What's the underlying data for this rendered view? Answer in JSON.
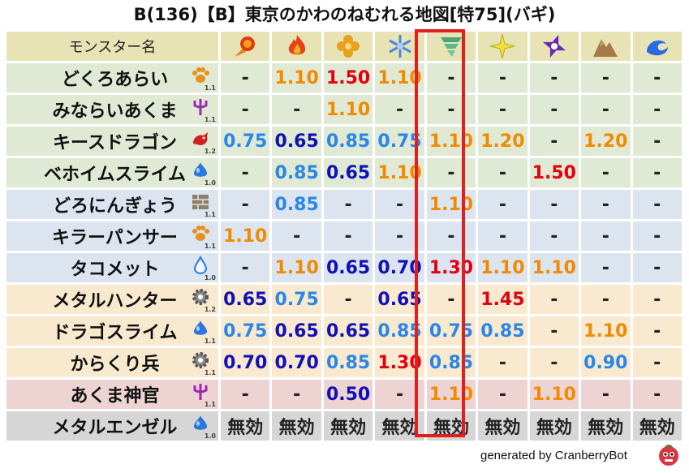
{
  "title": "B(136)【B】東京のかわのねむれる地図[特75](バギ)",
  "header": {
    "name_col": "モンスター名",
    "attributes": [
      {
        "icon": "fire-icon"
      },
      {
        "icon": "flame-icon"
      },
      {
        "icon": "clover-icon"
      },
      {
        "icon": "snowflake-icon"
      },
      {
        "icon": "tornado-icon"
      },
      {
        "icon": "light-icon"
      },
      {
        "icon": "shuriken-icon"
      },
      {
        "icon": "rock-icon"
      },
      {
        "icon": "wave-icon"
      }
    ]
  },
  "highlight_column_index": 4,
  "colors": {
    "orange": "#f28a00",
    "red": "#e3000f",
    "navy": "#1010b8",
    "light_blue": "#2a86e8",
    "highlight_border": "#e02020"
  },
  "rows": [
    {
      "name": "どくろあらい",
      "icon": "paw-icon",
      "level": "1.1",
      "bg": "green",
      "values": [
        {
          "v": "-",
          "c": "black"
        },
        {
          "v": "1.10",
          "c": "orange"
        },
        {
          "v": "1.50",
          "c": "red"
        },
        {
          "v": "1.10",
          "c": "orange"
        },
        {
          "v": "-",
          "c": "black"
        },
        {
          "v": "-",
          "c": "black"
        },
        {
          "v": "-",
          "c": "black"
        },
        {
          "v": "-",
          "c": "black"
        },
        {
          "v": "-",
          "c": "black"
        }
      ]
    },
    {
      "name": "みならいあくま",
      "icon": "trident-icon",
      "level": "1.1",
      "bg": "green",
      "values": [
        {
          "v": "-",
          "c": "black"
        },
        {
          "v": "-",
          "c": "black"
        },
        {
          "v": "1.10",
          "c": "orange"
        },
        {
          "v": "-",
          "c": "black"
        },
        {
          "v": "-",
          "c": "black"
        },
        {
          "v": "-",
          "c": "black"
        },
        {
          "v": "-",
          "c": "black"
        },
        {
          "v": "-",
          "c": "black"
        },
        {
          "v": "-",
          "c": "black"
        }
      ]
    },
    {
      "name": "キースドラゴン",
      "icon": "dragon-icon",
      "level": "1.2",
      "bg": "green",
      "values": [
        {
          "v": "0.75",
          "c": "lblue"
        },
        {
          "v": "0.65",
          "c": "navy"
        },
        {
          "v": "0.85",
          "c": "lblue"
        },
        {
          "v": "0.75",
          "c": "lblue"
        },
        {
          "v": "1.10",
          "c": "orange"
        },
        {
          "v": "1.20",
          "c": "orange"
        },
        {
          "v": "-",
          "c": "black"
        },
        {
          "v": "1.20",
          "c": "orange"
        },
        {
          "v": "-",
          "c": "black"
        }
      ]
    },
    {
      "name": "ベホイムスライム",
      "icon": "slime-icon",
      "level": "1.0",
      "bg": "green",
      "values": [
        {
          "v": "-",
          "c": "black"
        },
        {
          "v": "0.85",
          "c": "lblue"
        },
        {
          "v": "0.65",
          "c": "navy"
        },
        {
          "v": "1.10",
          "c": "orange"
        },
        {
          "v": "-",
          "c": "black"
        },
        {
          "v": "-",
          "c": "black"
        },
        {
          "v": "1.50",
          "c": "red"
        },
        {
          "v": "-",
          "c": "black"
        },
        {
          "v": "-",
          "c": "black"
        }
      ]
    },
    {
      "name": "どろにんぎょう",
      "icon": "brick-icon",
      "level": "1.1",
      "bg": "blue",
      "values": [
        {
          "v": "-",
          "c": "black"
        },
        {
          "v": "0.85",
          "c": "lblue"
        },
        {
          "v": "-",
          "c": "black"
        },
        {
          "v": "-",
          "c": "black"
        },
        {
          "v": "1.10",
          "c": "orange"
        },
        {
          "v": "-",
          "c": "black"
        },
        {
          "v": "-",
          "c": "black"
        },
        {
          "v": "-",
          "c": "black"
        },
        {
          "v": "-",
          "c": "black"
        }
      ]
    },
    {
      "name": "キラーパンサー",
      "icon": "paw-icon",
      "level": "1.1",
      "bg": "blue",
      "values": [
        {
          "v": "1.10",
          "c": "orange"
        },
        {
          "v": "-",
          "c": "black"
        },
        {
          "v": "-",
          "c": "black"
        },
        {
          "v": "-",
          "c": "black"
        },
        {
          "v": "-",
          "c": "black"
        },
        {
          "v": "-",
          "c": "black"
        },
        {
          "v": "-",
          "c": "black"
        },
        {
          "v": "-",
          "c": "black"
        },
        {
          "v": "-",
          "c": "black"
        }
      ]
    },
    {
      "name": "タコメット",
      "icon": "drop-icon",
      "level": "1.0",
      "bg": "blue",
      "values": [
        {
          "v": "-",
          "c": "black"
        },
        {
          "v": "1.10",
          "c": "orange"
        },
        {
          "v": "0.65",
          "c": "navy"
        },
        {
          "v": "0.70",
          "c": "navy"
        },
        {
          "v": "1.30",
          "c": "red"
        },
        {
          "v": "1.10",
          "c": "orange"
        },
        {
          "v": "1.10",
          "c": "orange"
        },
        {
          "v": "-",
          "c": "black"
        },
        {
          "v": "-",
          "c": "black"
        }
      ]
    },
    {
      "name": "メタルハンター",
      "icon": "gear-icon",
      "level": "1.2",
      "bg": "peach",
      "values": [
        {
          "v": "0.65",
          "c": "navy"
        },
        {
          "v": "0.75",
          "c": "lblue"
        },
        {
          "v": "-",
          "c": "black"
        },
        {
          "v": "0.65",
          "c": "navy"
        },
        {
          "v": "-",
          "c": "black"
        },
        {
          "v": "1.45",
          "c": "red"
        },
        {
          "v": "-",
          "c": "black"
        },
        {
          "v": "-",
          "c": "black"
        },
        {
          "v": "-",
          "c": "black"
        }
      ]
    },
    {
      "name": "ドラゴスライム",
      "icon": "slime-icon",
      "level": "1.1",
      "bg": "peach",
      "values": [
        {
          "v": "0.75",
          "c": "lblue"
        },
        {
          "v": "0.65",
          "c": "navy"
        },
        {
          "v": "0.65",
          "c": "navy"
        },
        {
          "v": "0.85",
          "c": "lblue"
        },
        {
          "v": "0.75",
          "c": "lblue"
        },
        {
          "v": "0.85",
          "c": "lblue"
        },
        {
          "v": "-",
          "c": "black"
        },
        {
          "v": "1.10",
          "c": "orange"
        },
        {
          "v": "-",
          "c": "black"
        }
      ]
    },
    {
      "name": "からくり兵",
      "icon": "gear-icon",
      "level": "1.1",
      "bg": "peach",
      "values": [
        {
          "v": "0.70",
          "c": "navy"
        },
        {
          "v": "0.70",
          "c": "navy"
        },
        {
          "v": "0.85",
          "c": "lblue"
        },
        {
          "v": "1.30",
          "c": "red"
        },
        {
          "v": "0.85",
          "c": "lblue"
        },
        {
          "v": "-",
          "c": "black"
        },
        {
          "v": "-",
          "c": "black"
        },
        {
          "v": "0.90",
          "c": "lblue"
        },
        {
          "v": "-",
          "c": "black"
        }
      ]
    },
    {
      "name": "あくま神官",
      "icon": "trident-icon",
      "level": "1.1",
      "bg": "pink",
      "values": [
        {
          "v": "-",
          "c": "black"
        },
        {
          "v": "-",
          "c": "black"
        },
        {
          "v": "0.50",
          "c": "navy"
        },
        {
          "v": "-",
          "c": "black"
        },
        {
          "v": "1.10",
          "c": "orange"
        },
        {
          "v": "-",
          "c": "black"
        },
        {
          "v": "1.10",
          "c": "orange"
        },
        {
          "v": "-",
          "c": "black"
        },
        {
          "v": "-",
          "c": "black"
        }
      ]
    },
    {
      "name": "メタルエンゼル",
      "icon": "slime-icon",
      "level": "1.0",
      "bg": "gray",
      "values": [
        {
          "v": "無効",
          "c": "black"
        },
        {
          "v": "無効",
          "c": "black"
        },
        {
          "v": "無効",
          "c": "black"
        },
        {
          "v": "無効",
          "c": "black"
        },
        {
          "v": "無効",
          "c": "black"
        },
        {
          "v": "無効",
          "c": "black"
        },
        {
          "v": "無効",
          "c": "black"
        },
        {
          "v": "無効",
          "c": "black"
        },
        {
          "v": "無効",
          "c": "black"
        }
      ]
    }
  ],
  "footer": {
    "text": "generated by CranberryBot",
    "icon": "cranberry-bot-icon"
  }
}
